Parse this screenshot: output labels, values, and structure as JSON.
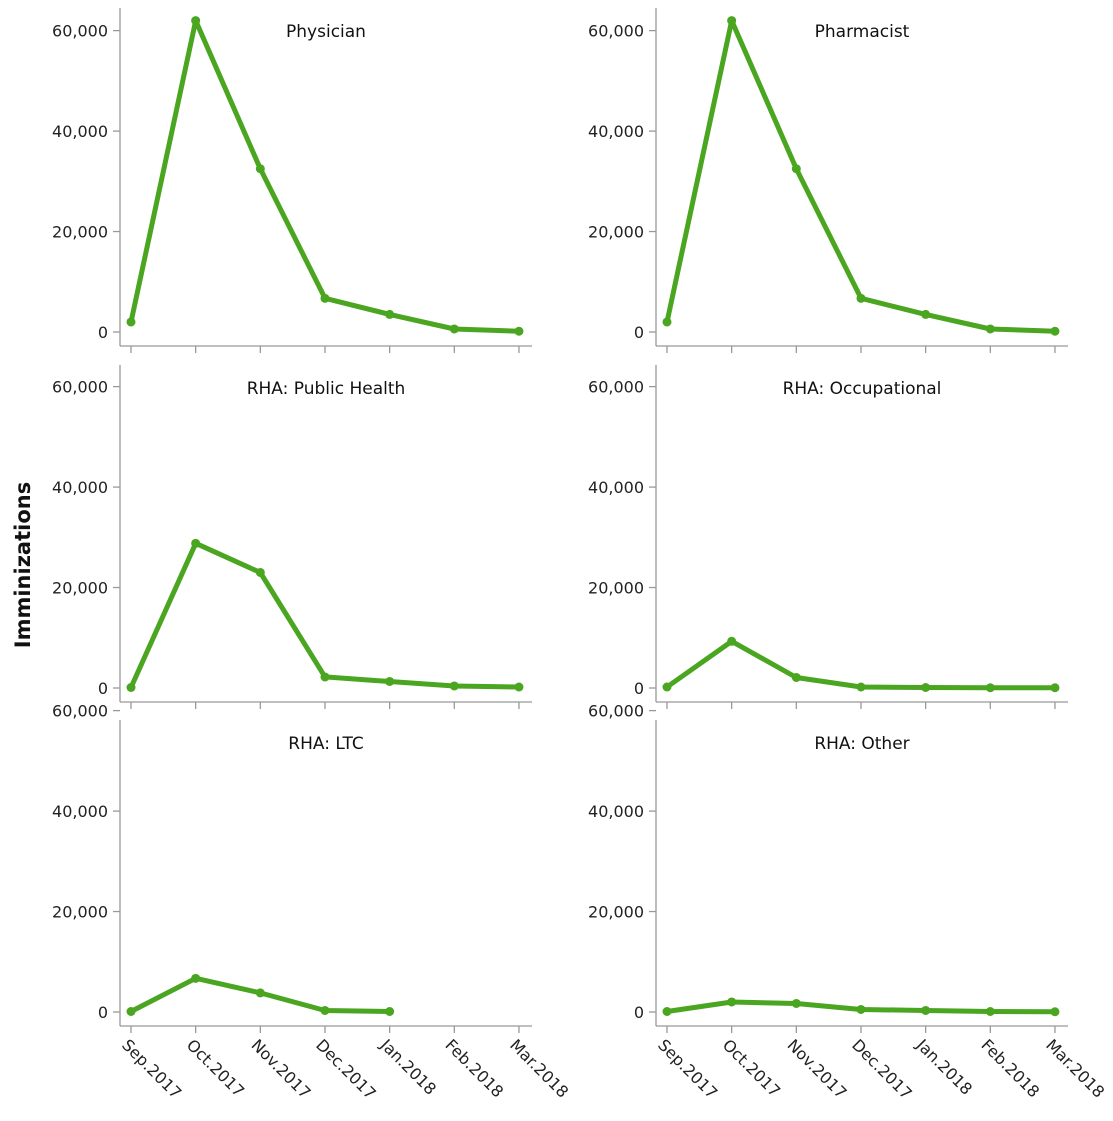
{
  "chart_data": {
    "type": "line",
    "layout": "small-multiples 3 rows x 2 columns",
    "ylabel": "Imminizations",
    "xlabel": "",
    "x": [
      "Sep.2017",
      "Oct.2017",
      "Nov.2017",
      "Dec.2017",
      "Jan.2018",
      "Feb.2018",
      "Mar.2018"
    ],
    "ylim": [
      0,
      62000
    ],
    "yticks": [
      0,
      20000,
      40000,
      60000
    ],
    "ytick_labels": [
      "0",
      "20,000",
      "40,000",
      "60,000"
    ],
    "grid": false,
    "legend": "none",
    "line_color": "#4aa520",
    "axis_color": "#999999",
    "panels": [
      {
        "title": "Physician",
        "values": [
          2000,
          62000,
          32500,
          6700,
          3500,
          600,
          150
        ]
      },
      {
        "title": "Pharmacist",
        "values": [
          2000,
          62000,
          32500,
          6700,
          3500,
          600,
          150
        ]
      },
      {
        "title": "RHA: Public Health",
        "values": [
          100,
          28800,
          23000,
          2200,
          1300,
          400,
          200
        ]
      },
      {
        "title": "RHA: Occupational",
        "values": [
          200,
          9300,
          2100,
          200,
          100,
          50,
          50
        ]
      },
      {
        "title": "RHA: LTC",
        "values": [
          100,
          6700,
          3800,
          300,
          100,
          null,
          null
        ]
      },
      {
        "title": "RHA: Other",
        "values": [
          100,
          2000,
          1700,
          500,
          300,
          100,
          50
        ]
      }
    ]
  }
}
